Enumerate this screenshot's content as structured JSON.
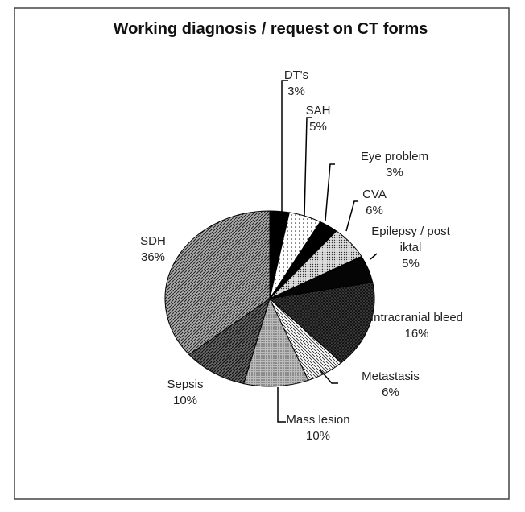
{
  "chart_data": {
    "type": "pie",
    "title": "Working diagnosis / request on CT forms",
    "categories": [
      "DT's",
      "SAH",
      "Eye problem",
      "CVA",
      "Epilepsy / post iktal",
      "Intracranial bleed",
      "Metastasis",
      "Mass lesion",
      "Sepsis",
      "SDH"
    ],
    "values": [
      3,
      5,
      3,
      6,
      5,
      16,
      6,
      10,
      10,
      36
    ],
    "value_labels": [
      "3%",
      "5%",
      "3%",
      "6%",
      "5%",
      "16%",
      "6%",
      "10%",
      "10%",
      "36%"
    ]
  }
}
